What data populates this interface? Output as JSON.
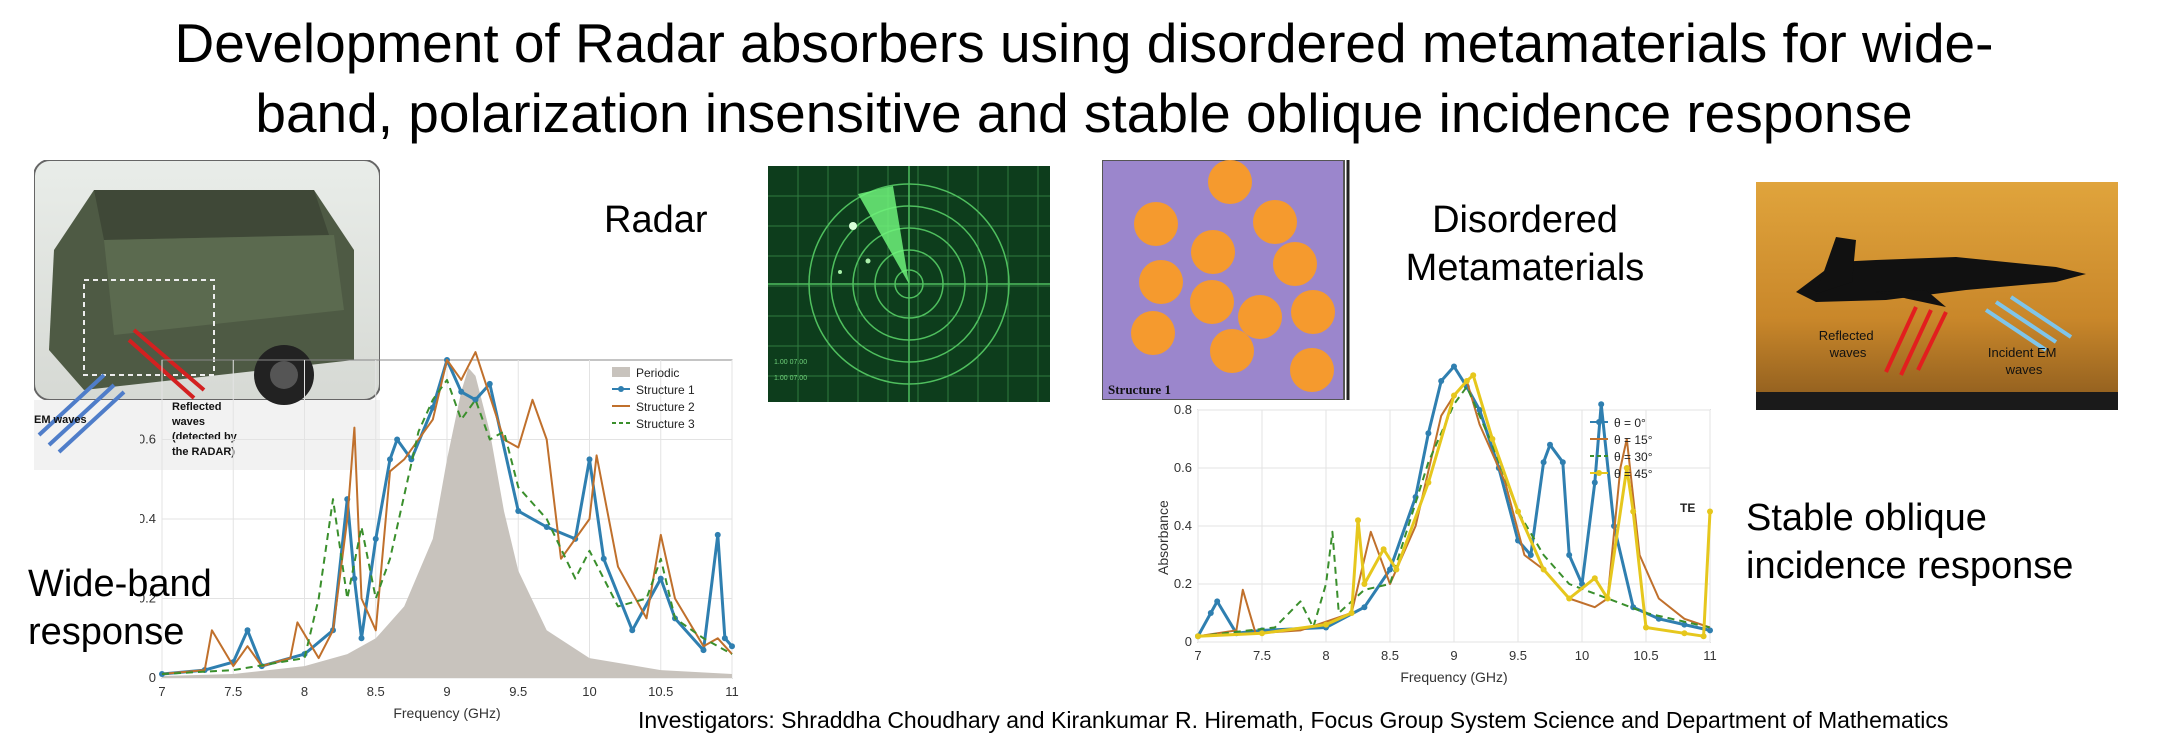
{
  "title": {
    "line1": "Development of Radar absorbers using disordered metamaterials for wide-",
    "line2": "band, polarization insensitive and stable oblique incidence response"
  },
  "labels": {
    "radar": "Radar",
    "disordered_line1": "Disordered",
    "disordered_line2": "Metamaterials",
    "wideband_line1": "Wide-band",
    "wideband_line2": "response",
    "oblique_line1": "Stable oblique",
    "oblique_line2": "incidence response"
  },
  "vehicle_photo": {
    "em_label": "EM waves",
    "reflected_label": [
      "Reflected",
      "waves",
      "(detected by",
      "the RADAR)"
    ]
  },
  "radar_screen": {
    "readouts": [
      "1.00 07.00",
      "1.00 07.00"
    ]
  },
  "structure_panel": {
    "caption": "Structure 1"
  },
  "jet_photo": {
    "reflected_label": [
      "Reflected",
      "waves"
    ],
    "incident_label": [
      "Incident EM",
      "waves"
    ]
  },
  "footer": "Investigators: Shraddha Choudhary and Kirankumar R. Hiremath, Focus Group System Science and Department of Mathematics",
  "chart_data": [
    {
      "type": "line",
      "xlabel": "Frequency (GHz)",
      "ylabel": "Absorbance",
      "xlim": [
        7,
        11
      ],
      "ylim": [
        0,
        0.8
      ],
      "xticks": [
        "7",
        "7.5",
        "8",
        "8.5",
        "9",
        "9.5",
        "10",
        "10.5",
        "11"
      ],
      "yticks": [
        "0",
        "0.2",
        "0.4",
        "0.6"
      ],
      "legend_position": "top-right",
      "series": [
        {
          "name": "Periodic",
          "style": "area",
          "color": "#c8c3bd",
          "x": [
            7,
            7.5,
            8,
            8.3,
            8.5,
            8.7,
            8.9,
            9.0,
            9.1,
            9.15,
            9.2,
            9.3,
            9.4,
            9.5,
            9.7,
            10,
            10.5,
            11
          ],
          "y": [
            0.005,
            0.01,
            0.03,
            0.06,
            0.1,
            0.18,
            0.35,
            0.55,
            0.72,
            0.78,
            0.76,
            0.62,
            0.42,
            0.27,
            0.12,
            0.05,
            0.02,
            0.01
          ]
        },
        {
          "name": "Structure 1",
          "style": "line-marker",
          "color": "#2f7fb0",
          "x": [
            7,
            7.3,
            7.5,
            7.6,
            7.7,
            8.0,
            8.2,
            8.3,
            8.35,
            8.4,
            8.5,
            8.6,
            8.65,
            8.75,
            8.9,
            9.0,
            9.1,
            9.2,
            9.3,
            9.5,
            9.7,
            9.9,
            10.0,
            10.1,
            10.3,
            10.5,
            10.6,
            10.8,
            10.9,
            10.95,
            11
          ],
          "y": [
            0.01,
            0.02,
            0.04,
            0.12,
            0.03,
            0.06,
            0.12,
            0.45,
            0.25,
            0.1,
            0.35,
            0.55,
            0.6,
            0.55,
            0.68,
            0.8,
            0.72,
            0.7,
            0.74,
            0.42,
            0.38,
            0.35,
            0.55,
            0.3,
            0.12,
            0.25,
            0.15,
            0.07,
            0.36,
            0.1,
            0.08
          ]
        },
        {
          "name": "Structure 2",
          "style": "line",
          "color": "#c0702c",
          "x": [
            7,
            7.3,
            7.35,
            7.5,
            7.6,
            7.7,
            7.9,
            7.95,
            8.1,
            8.2,
            8.3,
            8.35,
            8.4,
            8.5,
            8.6,
            8.7,
            8.9,
            9.0,
            9.1,
            9.2,
            9.4,
            9.5,
            9.6,
            9.7,
            9.8,
            10.0,
            10.05,
            10.2,
            10.4,
            10.5,
            10.6,
            10.8,
            10.9,
            11
          ],
          "y": [
            0.01,
            0.02,
            0.12,
            0.03,
            0.08,
            0.03,
            0.05,
            0.14,
            0.05,
            0.12,
            0.4,
            0.63,
            0.2,
            0.12,
            0.52,
            0.55,
            0.65,
            0.8,
            0.75,
            0.82,
            0.6,
            0.58,
            0.7,
            0.6,
            0.3,
            0.4,
            0.56,
            0.28,
            0.15,
            0.36,
            0.2,
            0.08,
            0.1,
            0.06
          ]
        },
        {
          "name": "Structure 3",
          "style": "dashed",
          "color": "#3a8f2c",
          "x": [
            7,
            7.5,
            8,
            8.1,
            8.2,
            8.3,
            8.4,
            8.5,
            8.6,
            8.8,
            8.9,
            9.0,
            9.1,
            9.2,
            9.3,
            9.4,
            9.5,
            9.7,
            9.9,
            10.0,
            10.2,
            10.4,
            10.5,
            10.6,
            10.8,
            11
          ],
          "y": [
            0.01,
            0.02,
            0.05,
            0.2,
            0.45,
            0.2,
            0.38,
            0.2,
            0.3,
            0.62,
            0.7,
            0.75,
            0.65,
            0.7,
            0.6,
            0.62,
            0.48,
            0.4,
            0.25,
            0.32,
            0.18,
            0.2,
            0.3,
            0.15,
            0.1,
            0.06
          ]
        }
      ]
    },
    {
      "type": "line",
      "xlabel": "Frequency (GHz)",
      "ylabel": "Absorbance",
      "xlim": [
        7,
        11
      ],
      "ylim": [
        0,
        0.8
      ],
      "xticks": [
        "7",
        "7.5",
        "8",
        "8.5",
        "9",
        "9.5",
        "10",
        "10.5",
        "11"
      ],
      "yticks": [
        "0",
        "0.2",
        "0.4",
        "0.6",
        "0.8"
      ],
      "legend_position": "top-right",
      "annotation": "TE",
      "series": [
        {
          "name": "θ = 0°",
          "style": "line-marker",
          "color": "#2f7fb0",
          "x": [
            7,
            7.1,
            7.15,
            7.3,
            7.5,
            8.0,
            8.3,
            8.5,
            8.7,
            8.8,
            8.9,
            9.0,
            9.1,
            9.2,
            9.35,
            9.5,
            9.6,
            9.7,
            9.75,
            9.85,
            9.9,
            10.0,
            10.1,
            10.15,
            10.25,
            10.4,
            10.6,
            10.8,
            11
          ],
          "y": [
            0.02,
            0.1,
            0.14,
            0.03,
            0.04,
            0.05,
            0.12,
            0.25,
            0.5,
            0.72,
            0.9,
            0.95,
            0.88,
            0.8,
            0.6,
            0.35,
            0.3,
            0.62,
            0.68,
            0.62,
            0.3,
            0.2,
            0.55,
            0.82,
            0.4,
            0.12,
            0.08,
            0.06,
            0.04
          ]
        },
        {
          "name": "θ = 15°",
          "style": "line",
          "color": "#c0702c",
          "x": [
            7,
            7.3,
            7.35,
            7.45,
            7.8,
            8.2,
            8.35,
            8.5,
            8.7,
            8.9,
            9.0,
            9.1,
            9.2,
            9.4,
            9.55,
            9.7,
            9.9,
            10.1,
            10.2,
            10.3,
            10.35,
            10.45,
            10.6,
            10.8,
            11
          ],
          "y": [
            0.02,
            0.04,
            0.18,
            0.03,
            0.04,
            0.1,
            0.38,
            0.2,
            0.4,
            0.78,
            0.85,
            0.9,
            0.75,
            0.55,
            0.3,
            0.25,
            0.15,
            0.12,
            0.15,
            0.6,
            0.7,
            0.3,
            0.15,
            0.08,
            0.05
          ]
        },
        {
          "name": "θ = 30°",
          "style": "dashed",
          "color": "#3a8f2c",
          "x": [
            7,
            7.6,
            7.8,
            7.9,
            8.0,
            8.05,
            8.1,
            8.3,
            8.5,
            8.8,
            9.0,
            9.1,
            9.3,
            9.5,
            9.7,
            9.9,
            10.2,
            10.5,
            11
          ],
          "y": [
            0.02,
            0.05,
            0.14,
            0.05,
            0.2,
            0.38,
            0.1,
            0.18,
            0.2,
            0.62,
            0.82,
            0.88,
            0.68,
            0.45,
            0.3,
            0.2,
            0.15,
            0.1,
            0.05
          ]
        },
        {
          "name": "θ = 45°",
          "style": "line-marker",
          "color": "#e6c71d",
          "x": [
            7,
            7.5,
            8.0,
            8.2,
            8.25,
            8.3,
            8.45,
            8.55,
            8.8,
            9.0,
            9.1,
            9.15,
            9.3,
            9.5,
            9.7,
            9.9,
            10.1,
            10.2,
            10.35,
            10.4,
            10.5,
            10.8,
            10.95,
            11
          ],
          "y": [
            0.02,
            0.03,
            0.06,
            0.1,
            0.42,
            0.2,
            0.32,
            0.25,
            0.55,
            0.85,
            0.9,
            0.92,
            0.7,
            0.45,
            0.25,
            0.15,
            0.22,
            0.15,
            0.6,
            0.45,
            0.05,
            0.03,
            0.02,
            0.45
          ]
        }
      ]
    }
  ]
}
